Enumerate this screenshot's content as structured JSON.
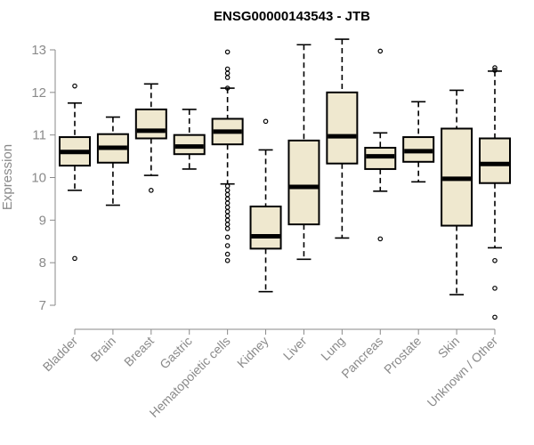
{
  "chart_data": {
    "type": "boxplot",
    "title": "ENSG00000143543 - JTB",
    "xlabel": "",
    "ylabel": "Expression",
    "ylim": [
      6.8,
      13.3
    ],
    "yticks": [
      7,
      8,
      9,
      10,
      11,
      12,
      13
    ],
    "categories": [
      "Bladder",
      "Brain",
      "Breast",
      "Gastric",
      "Hematopoietic cells",
      "Kidney",
      "Liver",
      "Lung",
      "Pancreas",
      "Prostate",
      "Skin",
      "Unknown / Other"
    ],
    "boxes": [
      {
        "category": "Bladder",
        "whisker_low": 9.7,
        "q1": 10.28,
        "median": 10.6,
        "q3": 10.95,
        "whisker_high": 11.75,
        "outliers": [
          12.15,
          8.1
        ]
      },
      {
        "category": "Brain",
        "whisker_low": 9.35,
        "q1": 10.35,
        "median": 10.7,
        "q3": 11.02,
        "whisker_high": 11.42,
        "outliers": []
      },
      {
        "category": "Breast",
        "whisker_low": 10.05,
        "q1": 10.92,
        "median": 11.1,
        "q3": 11.6,
        "whisker_high": 12.2,
        "outliers": [
          9.7
        ]
      },
      {
        "category": "Gastric",
        "whisker_low": 10.2,
        "q1": 10.55,
        "median": 10.73,
        "q3": 11.0,
        "whisker_high": 11.6,
        "outliers": []
      },
      {
        "category": "Hematopoietic cells",
        "whisker_low": 9.85,
        "q1": 10.78,
        "median": 11.08,
        "q3": 11.38,
        "whisker_high": 12.1,
        "outliers": [
          12.95,
          12.55,
          12.45,
          12.35,
          12.1,
          9.8,
          9.7,
          9.6,
          9.5,
          9.4,
          9.3,
          9.2,
          9.1,
          9.0,
          8.9,
          8.8,
          8.6,
          8.4,
          8.2,
          8.05
        ]
      },
      {
        "category": "Kidney",
        "whisker_low": 7.32,
        "q1": 8.33,
        "median": 8.62,
        "q3": 9.32,
        "whisker_high": 10.65,
        "outliers": [
          11.32
        ]
      },
      {
        "category": "Liver",
        "whisker_low": 8.08,
        "q1": 8.9,
        "median": 9.78,
        "q3": 10.87,
        "whisker_high": 13.12,
        "outliers": []
      },
      {
        "category": "Lung",
        "whisker_low": 8.58,
        "q1": 10.33,
        "median": 10.97,
        "q3": 12.0,
        "whisker_high": 13.25,
        "outliers": []
      },
      {
        "category": "Pancreas",
        "whisker_low": 9.68,
        "q1": 10.2,
        "median": 10.5,
        "q3": 10.7,
        "whisker_high": 11.05,
        "outliers": [
          12.97,
          8.56
        ]
      },
      {
        "category": "Prostate",
        "whisker_low": 9.9,
        "q1": 10.37,
        "median": 10.62,
        "q3": 10.95,
        "whisker_high": 11.78,
        "outliers": []
      },
      {
        "category": "Skin",
        "whisker_low": 7.25,
        "q1": 8.87,
        "median": 9.97,
        "q3": 11.15,
        "whisker_high": 12.05,
        "outliers": []
      },
      {
        "category": "Unknown / Other",
        "whisker_low": 8.35,
        "q1": 9.87,
        "median": 10.32,
        "q3": 10.92,
        "whisker_high": 12.5,
        "outliers": [
          12.58,
          12.52,
          8.05,
          7.4,
          6.72
        ]
      }
    ],
    "grid": false,
    "legend": "none"
  },
  "colors": {
    "box_fill": "#efe8cf",
    "box_stroke": "#000000",
    "axis": "#8a8a8a"
  }
}
